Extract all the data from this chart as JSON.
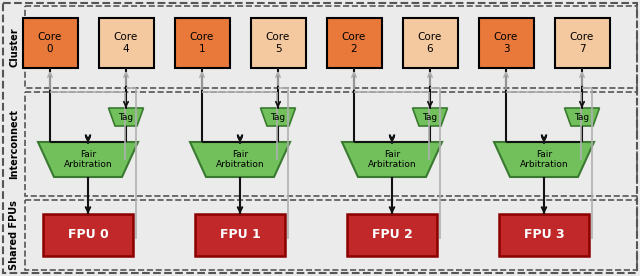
{
  "fig_width": 6.4,
  "fig_height": 2.76,
  "dpi": 100,
  "bg_color": "#ebebeb",
  "cores": [
    {
      "label": "Core\n0",
      "color": "#e8793a"
    },
    {
      "label": "Core\n4",
      "color": "#f5c9a0"
    },
    {
      "label": "Core\n1",
      "color": "#e8793a"
    },
    {
      "label": "Core\n5",
      "color": "#f5c9a0"
    },
    {
      "label": "Core\n2",
      "color": "#e8793a"
    },
    {
      "label": "Core\n6",
      "color": "#f5c9a0"
    },
    {
      "label": "Core\n3",
      "color": "#e8793a"
    },
    {
      "label": "Core\n7",
      "color": "#f5c9a0"
    }
  ],
  "fpu_color": "#c0282a",
  "fpu_edge_color": "#8b0000",
  "fpu_labels": [
    "FPU 0",
    "FPU 1",
    "FPU 2",
    "FPU 3"
  ],
  "arb_color": "#72c05c",
  "arb_edge_color": "#3a7a30",
  "tag_color": "#72c05c",
  "tag_edge_color": "#3a7a30",
  "label_cluster": "Cluster",
  "label_interconnect": "Interconnect",
  "label_shared": "Shared FPUs",
  "dark_arrow": "#111111",
  "gray_arrow": "#b0b0b0",
  "border_color": "#555555",
  "section_border_color": "#555555"
}
